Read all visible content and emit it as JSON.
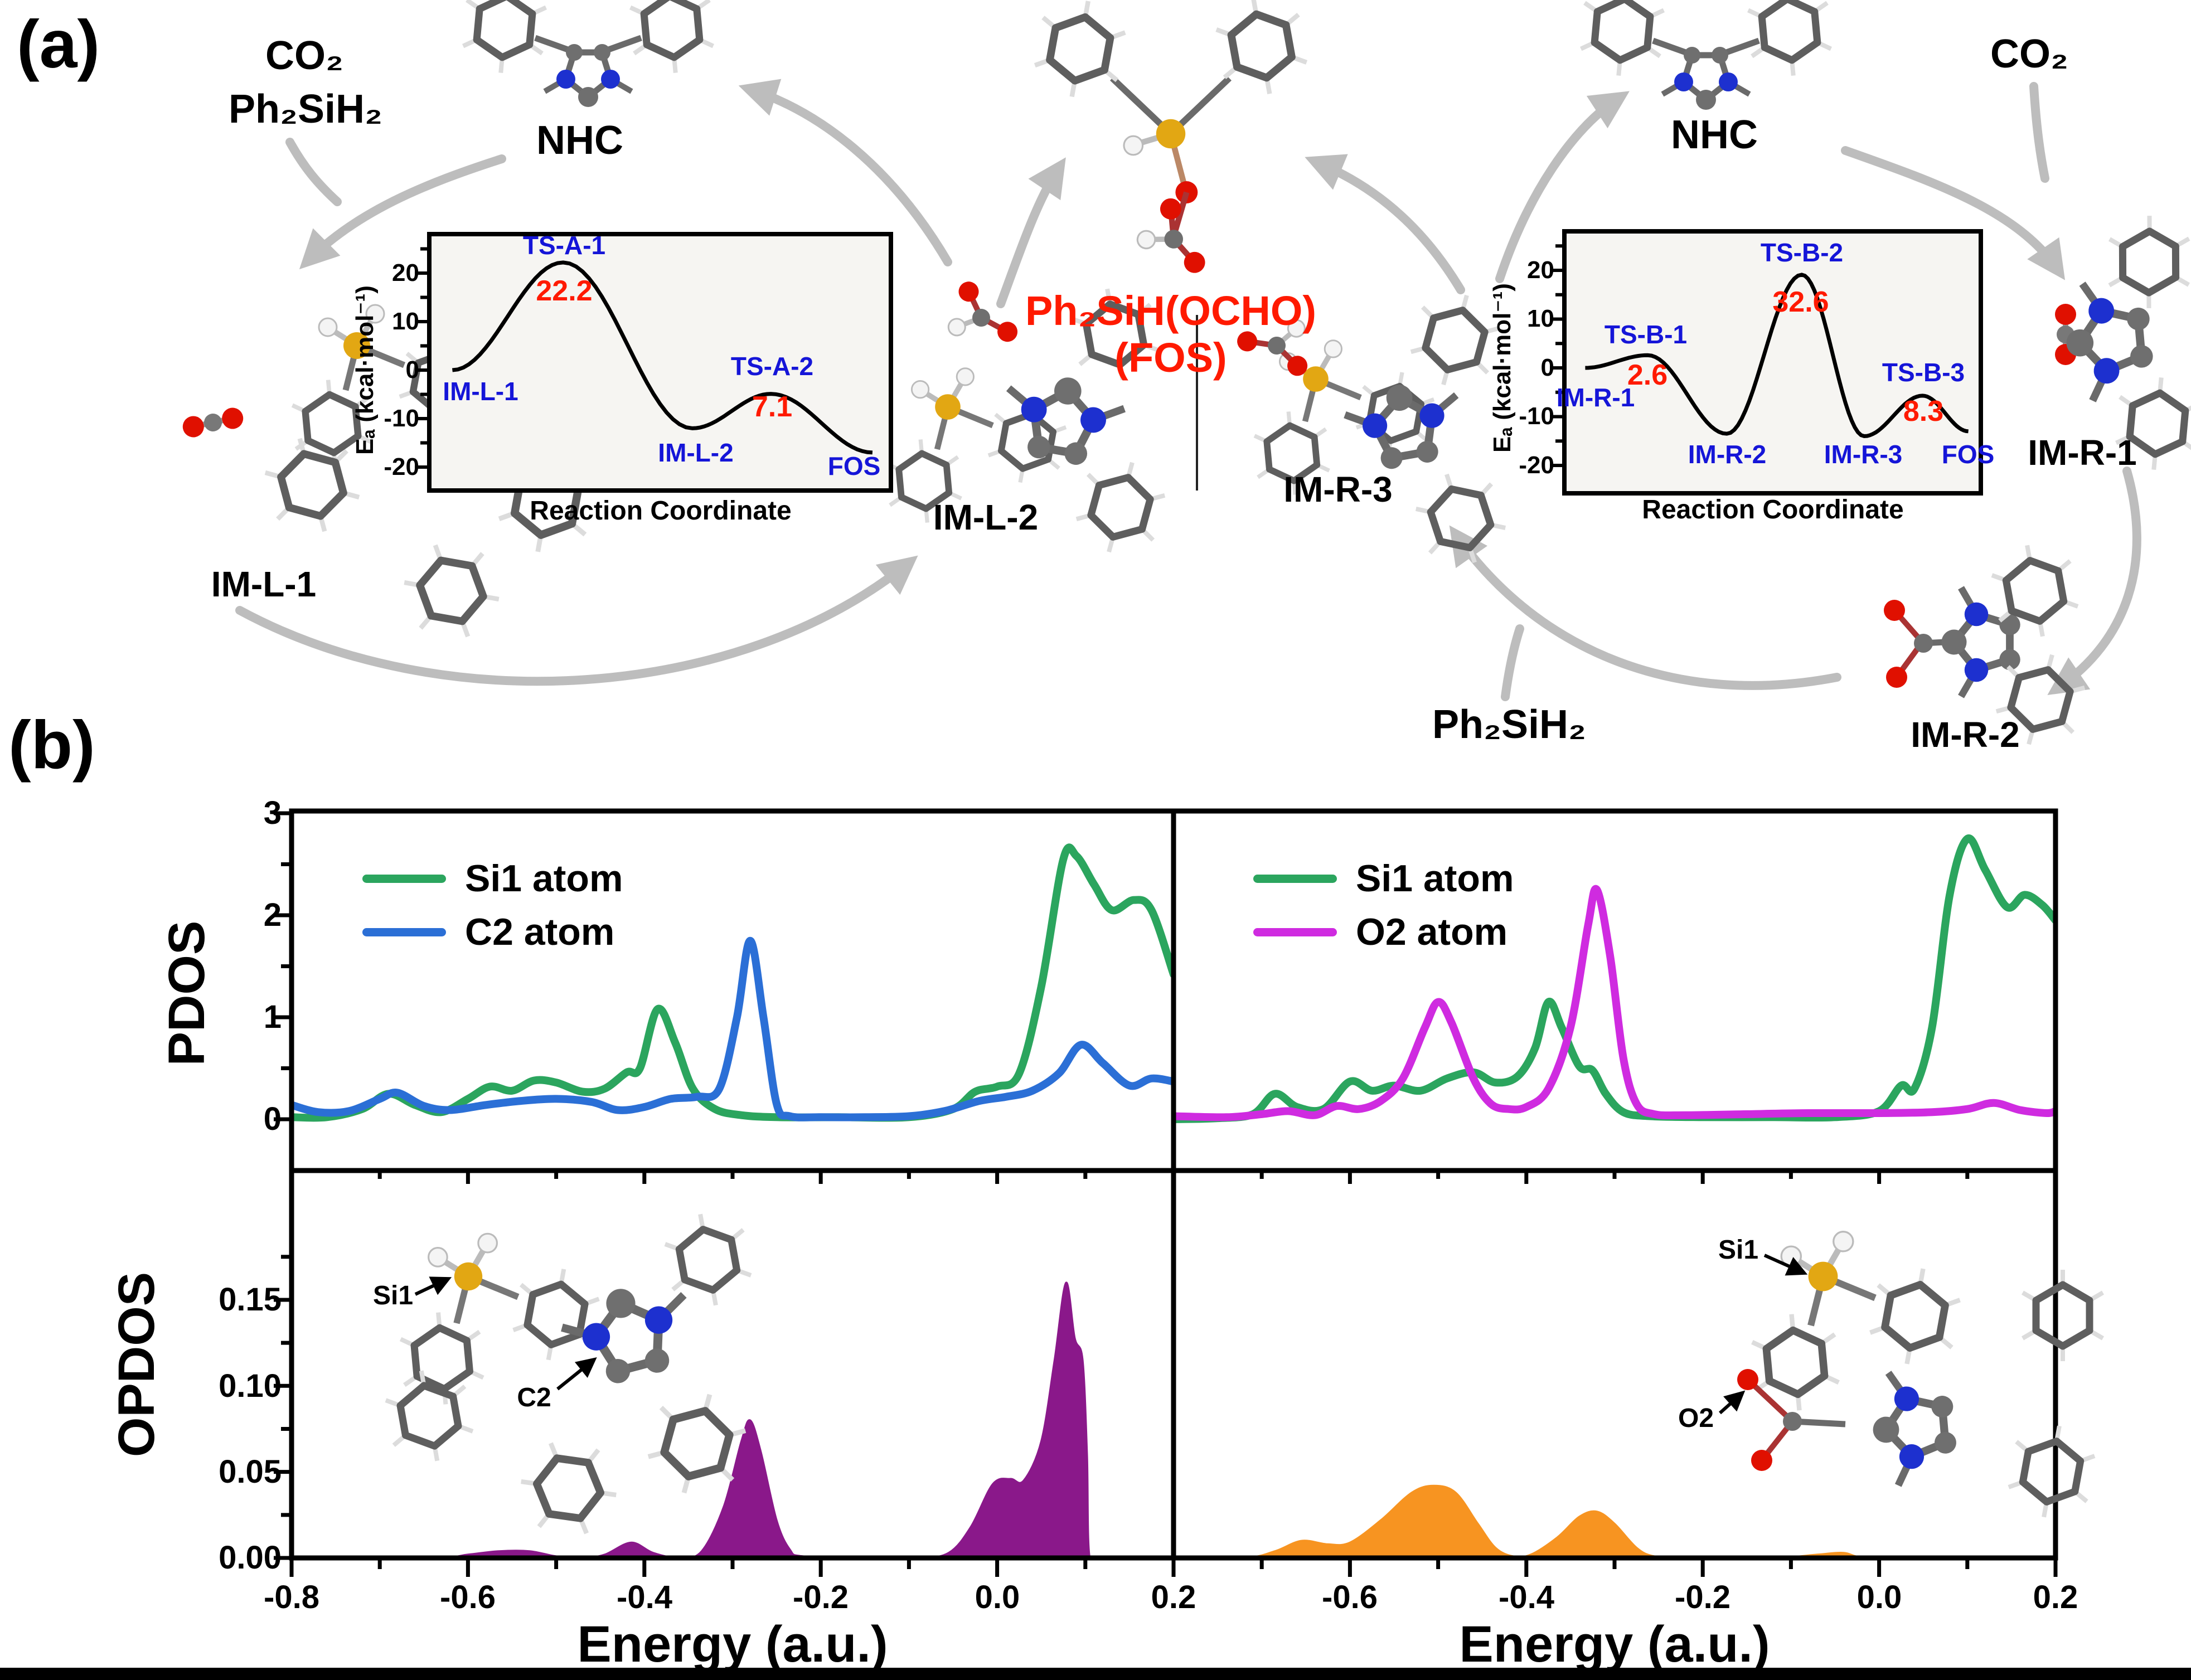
{
  "figure": {
    "panel_a_label": "(a)",
    "panel_b_label": "(b)"
  },
  "colors": {
    "station_label_blue": "#1515d8",
    "barrier_label_red": "#ff1a00",
    "cycle_arrow_gray": "#bdbdbd",
    "si1_green": "#2ba55e",
    "c2_blue": "#2b6fd6",
    "o2_magenta": "#cf2be0",
    "opdos_left_purple": "#8a188a",
    "opdos_right_orange": "#f79421"
  },
  "panel_a": {
    "left_cycle": {
      "reagent_co2": "CO₂",
      "reagent_silane": "Ph₂SiH₂",
      "nhc_label": "NHC",
      "im_l_1": "IM-L-1",
      "im_l_2": "IM-L-2"
    },
    "product": {
      "formula": "Ph₂SiH(OCHO)",
      "name": "(FOS)"
    },
    "right_cycle": {
      "co2_label": "CO₂",
      "nhc_label": "NHC",
      "silane_label": "Ph₂SiH₂",
      "im_r_1": "IM-R-1",
      "im_r_2": "IM-R-2",
      "im_r_3": "IM-R-3"
    }
  },
  "panel_b": {
    "insets": {
      "left": {
        "si1": "Si1",
        "c2": "C2"
      },
      "right": {
        "si1": "Si1",
        "o2": "O2"
      }
    }
  },
  "chart_data": [
    {
      "id": "energy-profile-left",
      "type": "line",
      "xlabel": "Reaction Coordinate",
      "ylabel": "Eₐ (kcal·mol⁻¹)",
      "ylim": [
        -25,
        27
      ],
      "yticks": [
        "20",
        "10",
        "0",
        "-10",
        "-20"
      ],
      "stations": [
        {
          "label": "IM-L-1",
          "x": 0.05,
          "energy": 0.0
        },
        {
          "label": "TS-A-1",
          "x": 0.29,
          "energy": 22.2,
          "barrier": "22.2"
        },
        {
          "label": "IM-L-2",
          "x": 0.57,
          "energy": -12.0
        },
        {
          "label": "TS-A-2",
          "x": 0.74,
          "energy": -4.9,
          "barrier": "7.1"
        },
        {
          "label": "FOS",
          "x": 0.96,
          "energy": -17.0
        }
      ]
    },
    {
      "id": "energy-profile-right",
      "type": "line",
      "xlabel": "Reaction Coordinate",
      "ylabel": "Eₐ (kcal·mol⁻¹)",
      "ylim": [
        -25,
        27
      ],
      "yticks": [
        "20",
        "10",
        "0",
        "-10",
        "-20"
      ],
      "stations": [
        {
          "label": "IM-R-1",
          "x": 0.05,
          "energy": 0.0
        },
        {
          "label": "TS-B-1",
          "x": 0.2,
          "energy": 2.6,
          "barrier": "2.6"
        },
        {
          "label": "IM-R-2",
          "x": 0.39,
          "energy": -13.5
        },
        {
          "label": "TS-B-2",
          "x": 0.57,
          "energy": 19.1,
          "barrier": "32.6"
        },
        {
          "label": "IM-R-3",
          "x": 0.72,
          "energy": -14.0
        },
        {
          "label": "TS-B-3",
          "x": 0.86,
          "energy": -5.7,
          "barrier": "8.3"
        },
        {
          "label": "FOS",
          "x": 0.97,
          "energy": -13.0
        }
      ]
    },
    {
      "id": "pdos-left",
      "type": "line",
      "ylabel": "PDOS",
      "xlim": [
        -0.8,
        0.2
      ],
      "ylim": [
        -0.5,
        3.0
      ],
      "yticks": [
        "0",
        "1",
        "2",
        "3"
      ],
      "legend_position": "top-left",
      "series": [
        {
          "name": "Si1 atom",
          "color": "#2ba55e",
          "points": [
            [
              -0.8,
              0.02
            ],
            [
              -0.76,
              0.02
            ],
            [
              -0.72,
              0.1
            ],
            [
              -0.69,
              0.25
            ],
            [
              -0.66,
              0.14
            ],
            [
              -0.63,
              0.07
            ],
            [
              -0.6,
              0.2
            ],
            [
              -0.575,
              0.32
            ],
            [
              -0.55,
              0.28
            ],
            [
              -0.525,
              0.38
            ],
            [
              -0.5,
              0.36
            ],
            [
              -0.47,
              0.27
            ],
            [
              -0.445,
              0.3
            ],
            [
              -0.42,
              0.46
            ],
            [
              -0.405,
              0.5
            ],
            [
              -0.385,
              1.08
            ],
            [
              -0.365,
              0.75
            ],
            [
              -0.345,
              0.3
            ],
            [
              -0.32,
              0.1
            ],
            [
              -0.29,
              0.04
            ],
            [
              -0.25,
              0.02
            ],
            [
              -0.18,
              0.02
            ],
            [
              -0.1,
              0.02
            ],
            [
              -0.05,
              0.1
            ],
            [
              -0.025,
              0.27
            ],
            [
              0.0,
              0.32
            ],
            [
              0.025,
              0.45
            ],
            [
              0.05,
              1.3
            ],
            [
              0.075,
              2.55
            ],
            [
              0.09,
              2.58
            ],
            [
              0.11,
              2.3
            ],
            [
              0.13,
              2.05
            ],
            [
              0.155,
              2.15
            ],
            [
              0.175,
              2.05
            ],
            [
              0.2,
              1.42
            ]
          ]
        },
        {
          "name": "C2 atom",
          "color": "#2b6fd6",
          "points": [
            [
              -0.8,
              0.14
            ],
            [
              -0.77,
              0.07
            ],
            [
              -0.735,
              0.08
            ],
            [
              -0.7,
              0.2
            ],
            [
              -0.68,
              0.26
            ],
            [
              -0.65,
              0.13
            ],
            [
              -0.62,
              0.09
            ],
            [
              -0.58,
              0.14
            ],
            [
              -0.54,
              0.18
            ],
            [
              -0.5,
              0.2
            ],
            [
              -0.46,
              0.17
            ],
            [
              -0.43,
              0.09
            ],
            [
              -0.4,
              0.12
            ],
            [
              -0.37,
              0.2
            ],
            [
              -0.34,
              0.22
            ],
            [
              -0.315,
              0.3
            ],
            [
              -0.295,
              1.0
            ],
            [
              -0.28,
              1.75
            ],
            [
              -0.265,
              1.0
            ],
            [
              -0.25,
              0.15
            ],
            [
              -0.235,
              0.03
            ],
            [
              -0.2,
              0.02
            ],
            [
              -0.15,
              0.02
            ],
            [
              -0.1,
              0.03
            ],
            [
              -0.06,
              0.08
            ],
            [
              -0.02,
              0.18
            ],
            [
              0.01,
              0.22
            ],
            [
              0.04,
              0.28
            ],
            [
              0.07,
              0.45
            ],
            [
              0.095,
              0.73
            ],
            [
              0.12,
              0.55
            ],
            [
              0.15,
              0.33
            ],
            [
              0.175,
              0.4
            ],
            [
              0.2,
              0.37
            ]
          ]
        }
      ]
    },
    {
      "id": "pdos-right",
      "type": "line",
      "xlim": [
        -0.8,
        0.2
      ],
      "ylim": [
        -0.5,
        3.0
      ],
      "legend_position": "top-left",
      "series": [
        {
          "name": "Si1 atom",
          "color": "#2ba55e",
          "points": [
            [
              -0.8,
              0.0
            ],
            [
              -0.75,
              0.01
            ],
            [
              -0.71,
              0.05
            ],
            [
              -0.685,
              0.25
            ],
            [
              -0.66,
              0.12
            ],
            [
              -0.63,
              0.1
            ],
            [
              -0.6,
              0.37
            ],
            [
              -0.575,
              0.28
            ],
            [
              -0.55,
              0.33
            ],
            [
              -0.52,
              0.28
            ],
            [
              -0.49,
              0.4
            ],
            [
              -0.46,
              0.46
            ],
            [
              -0.435,
              0.36
            ],
            [
              -0.41,
              0.42
            ],
            [
              -0.39,
              0.7
            ],
            [
              -0.375,
              1.15
            ],
            [
              -0.36,
              0.9
            ],
            [
              -0.34,
              0.52
            ],
            [
              -0.325,
              0.48
            ],
            [
              -0.31,
              0.25
            ],
            [
              -0.29,
              0.07
            ],
            [
              -0.26,
              0.03
            ],
            [
              -0.2,
              0.02
            ],
            [
              -0.12,
              0.02
            ],
            [
              -0.05,
              0.02
            ],
            [
              0.0,
              0.08
            ],
            [
              0.025,
              0.33
            ],
            [
              0.04,
              0.3
            ],
            [
              0.06,
              0.9
            ],
            [
              0.08,
              2.2
            ],
            [
              0.1,
              2.75
            ],
            [
              0.12,
              2.45
            ],
            [
              0.145,
              2.08
            ],
            [
              0.165,
              2.2
            ],
            [
              0.185,
              2.1
            ],
            [
              0.2,
              1.95
            ]
          ]
        },
        {
          "name": "O2 atom",
          "color": "#cf2be0",
          "points": [
            [
              -0.8,
              0.03
            ],
            [
              -0.74,
              0.02
            ],
            [
              -0.7,
              0.05
            ],
            [
              -0.67,
              0.08
            ],
            [
              -0.64,
              0.04
            ],
            [
              -0.615,
              0.13
            ],
            [
              -0.59,
              0.1
            ],
            [
              -0.565,
              0.18
            ],
            [
              -0.54,
              0.4
            ],
            [
              -0.515,
              0.9
            ],
            [
              -0.5,
              1.15
            ],
            [
              -0.485,
              0.95
            ],
            [
              -0.46,
              0.4
            ],
            [
              -0.44,
              0.15
            ],
            [
              -0.42,
              0.1
            ],
            [
              -0.4,
              0.12
            ],
            [
              -0.375,
              0.3
            ],
            [
              -0.35,
              0.9
            ],
            [
              -0.33,
              1.9
            ],
            [
              -0.32,
              2.25
            ],
            [
              -0.305,
              1.6
            ],
            [
              -0.29,
              0.6
            ],
            [
              -0.275,
              0.15
            ],
            [
              -0.255,
              0.05
            ],
            [
              -0.22,
              0.04
            ],
            [
              -0.15,
              0.05
            ],
            [
              -0.08,
              0.06
            ],
            [
              0.0,
              0.06
            ],
            [
              0.06,
              0.07
            ],
            [
              0.1,
              0.1
            ],
            [
              0.13,
              0.16
            ],
            [
              0.16,
              0.09
            ],
            [
              0.19,
              0.06
            ],
            [
              0.2,
              0.08
            ]
          ]
        }
      ]
    },
    {
      "id": "opdos-left",
      "type": "area",
      "ylabel": "OPDOS",
      "xlabel": "Energy (a.u.)",
      "xlim": [
        -0.8,
        0.2
      ],
      "ylim": [
        0,
        0.225
      ],
      "xticks": [
        "-0.8",
        "-0.6",
        "-0.4",
        "-0.2",
        "0.0",
        "0.2"
      ],
      "yticks": [
        "0.00",
        "0.05",
        "0.10",
        "0.15"
      ],
      "series": [
        {
          "color": "#8a188a",
          "points": [
            [
              -0.8,
              0
            ],
            [
              -0.64,
              0
            ],
            [
              -0.6,
              0.002
            ],
            [
              -0.565,
              0.004
            ],
            [
              -0.53,
              0.004
            ],
            [
              -0.5,
              0.001
            ],
            [
              -0.47,
              0
            ],
            [
              -0.445,
              0.002
            ],
            [
              -0.415,
              0.009
            ],
            [
              -0.39,
              0.003
            ],
            [
              -0.36,
              0
            ],
            [
              -0.335,
              0.004
            ],
            [
              -0.31,
              0.03
            ],
            [
              -0.29,
              0.068
            ],
            [
              -0.28,
              0.08
            ],
            [
              -0.268,
              0.062
            ],
            [
              -0.25,
              0.022
            ],
            [
              -0.235,
              0.005
            ],
            [
              -0.22,
              0.001
            ],
            [
              -0.15,
              0
            ],
            [
              -0.09,
              0
            ],
            [
              -0.055,
              0.003
            ],
            [
              -0.03,
              0.018
            ],
            [
              -0.005,
              0.043
            ],
            [
              0.015,
              0.046
            ],
            [
              0.03,
              0.045
            ],
            [
              0.05,
              0.068
            ],
            [
              0.065,
              0.115
            ],
            [
              0.078,
              0.16
            ],
            [
              0.088,
              0.128
            ],
            [
              0.097,
              0.115
            ],
            [
              0.102,
              0.06
            ],
            [
              0.105,
              0.0
            ],
            [
              0.12,
              0
            ],
            [
              0.2,
              0
            ]
          ]
        }
      ]
    },
    {
      "id": "opdos-right",
      "type": "area",
      "xlabel": "Energy (a.u.)",
      "xlim": [
        -0.8,
        0.2
      ],
      "ylim": [
        0,
        0.225
      ],
      "xticks": [
        "-0.6",
        "-0.4",
        "-0.2",
        "0.0",
        "0.2"
      ],
      "series": [
        {
          "color": "#f79421",
          "points": [
            [
              -0.8,
              0
            ],
            [
              -0.72,
              0
            ],
            [
              -0.685,
              0.004
            ],
            [
              -0.655,
              0.01
            ],
            [
              -0.625,
              0.008
            ],
            [
              -0.6,
              0.009
            ],
            [
              -0.565,
              0.022
            ],
            [
              -0.53,
              0.038
            ],
            [
              -0.505,
              0.042
            ],
            [
              -0.48,
              0.038
            ],
            [
              -0.455,
              0.02
            ],
            [
              -0.435,
              0.006
            ],
            [
              -0.415,
              0.001
            ],
            [
              -0.395,
              0.002
            ],
            [
              -0.365,
              0.012
            ],
            [
              -0.34,
              0.024
            ],
            [
              -0.32,
              0.027
            ],
            [
              -0.3,
              0.02
            ],
            [
              -0.275,
              0.006
            ],
            [
              -0.255,
              0.001
            ],
            [
              -0.22,
              0
            ],
            [
              -0.12,
              0
            ],
            [
              -0.07,
              0.002
            ],
            [
              -0.04,
              0.003
            ],
            [
              -0.01,
              0
            ],
            [
              0.1,
              0
            ],
            [
              0.2,
              0
            ]
          ]
        }
      ]
    }
  ]
}
